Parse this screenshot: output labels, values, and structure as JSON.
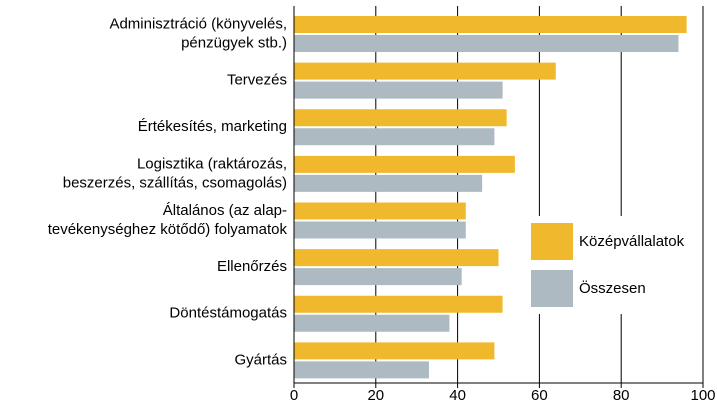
{
  "chart_data": {
    "type": "bar",
    "orientation": "horizontal",
    "categories": [
      [
        "Adminisztráció (könyvelés,",
        "pénzügyek stb.)"
      ],
      [
        "Tervezés"
      ],
      [
        "Értékesítés, marketing"
      ],
      [
        "Logisztika (raktározás,",
        "beszerzés, szállítás, csomagolás)"
      ],
      [
        "Általános (az alap-",
        "tevékenységhez kötődő) folyamatok"
      ],
      [
        "Ellenőrzés"
      ],
      [
        "Döntéstámogatás"
      ],
      [
        "Gyártás"
      ]
    ],
    "series": [
      {
        "name": "Középvállalatok",
        "color": "#f0b92d",
        "values": [
          96,
          64,
          52,
          54,
          42,
          50,
          51,
          49
        ]
      },
      {
        "name": "Összesen",
        "color": "#aebac2",
        "values": [
          94,
          51,
          49,
          46,
          42,
          41,
          38,
          33
        ]
      }
    ],
    "xlim": [
      0,
      100
    ],
    "xticks": [
      0,
      20,
      40,
      60,
      80,
      100
    ],
    "grid": true,
    "legend": "right"
  }
}
